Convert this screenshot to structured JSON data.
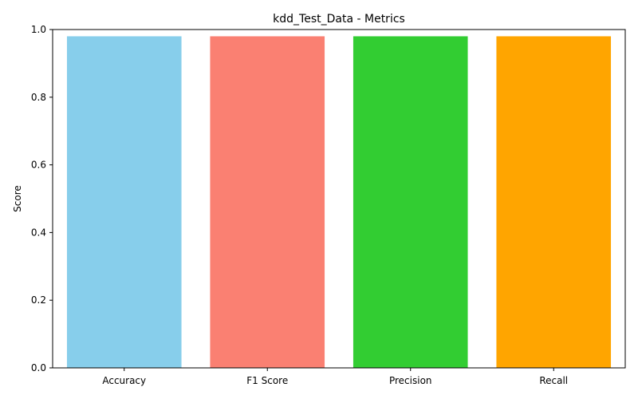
{
  "chart_data": {
    "type": "bar",
    "title": "kdd_Test_Data - Metrics",
    "xlabel": "",
    "ylabel": "Score",
    "categories": [
      "Accuracy",
      "F1 Score",
      "Precision",
      "Recall"
    ],
    "values": [
      0.98,
      0.98,
      0.98,
      0.98
    ],
    "colors": [
      "#87ceeb",
      "#fa8072",
      "#32cd32",
      "#ffa500"
    ],
    "ylim": [
      0,
      1.0
    ],
    "yticks": [
      "0.0",
      "0.2",
      "0.4",
      "0.6",
      "0.8",
      "1.0"
    ],
    "grid": false,
    "legend": "none"
  }
}
